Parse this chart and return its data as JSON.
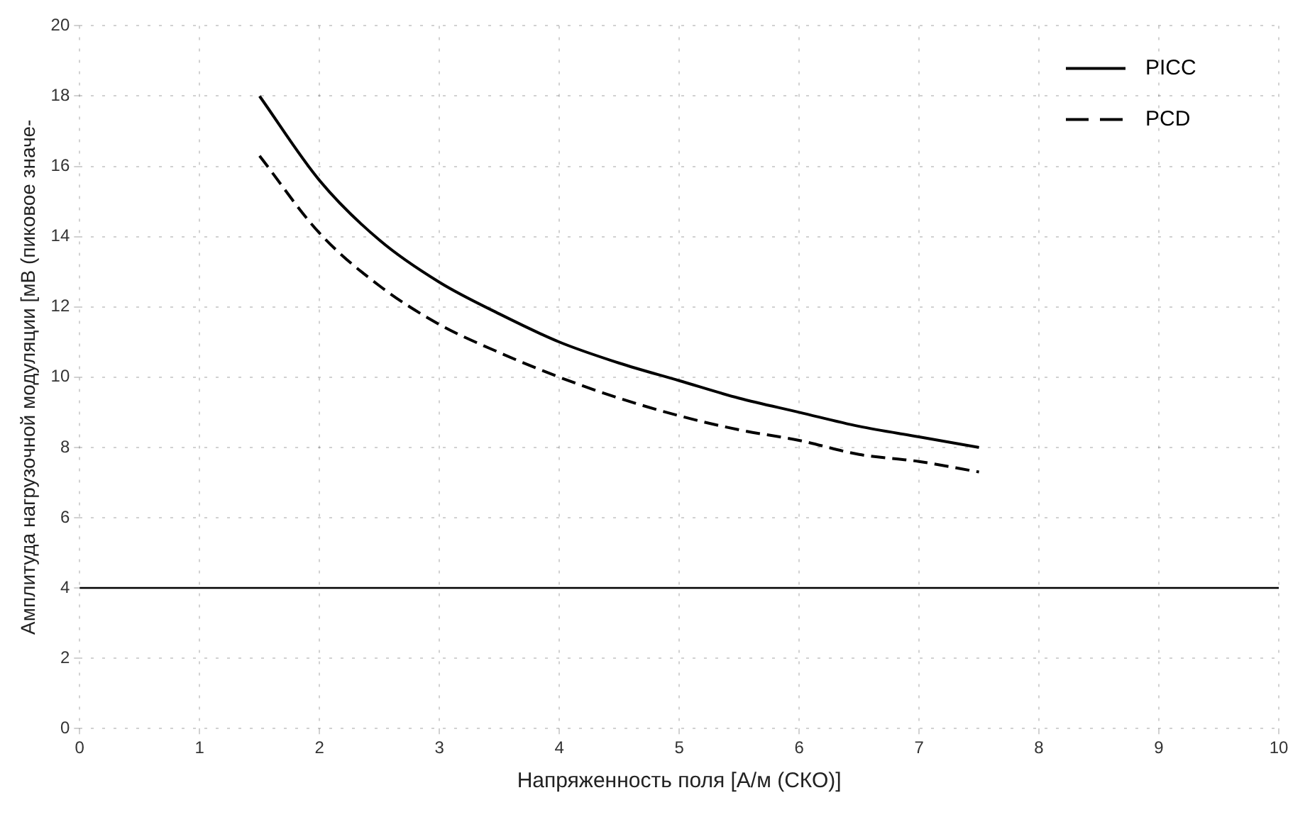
{
  "chart_data": {
    "type": "line",
    "xlabel": "Напряженность поля [А/м (СКО)]",
    "ylabel": "Амплитуда нагрузочной модуляции [мВ (пиковое значе-",
    "xlim": [
      0,
      10
    ],
    "xticks": [
      0,
      1,
      2,
      3,
      4,
      5,
      6,
      7,
      8,
      9,
      10
    ],
    "ylim": [
      0,
      20
    ],
    "yticks": [
      0,
      2,
      4,
      6,
      8,
      10,
      12,
      14,
      16,
      18,
      20
    ],
    "grid": true,
    "legend": "top right",
    "marker": "none",
    "ref_lines": [
      {
        "axis": "y",
        "value": 4,
        "color": "#000000",
        "line_style": "solid"
      }
    ],
    "series": [
      {
        "name": "PICC",
        "color": "#000000",
        "line_style": "solid",
        "x": [
          1.5,
          2,
          2.5,
          3,
          3.5,
          4,
          4.5,
          5,
          5.5,
          6,
          6.5,
          7,
          7.5
        ],
        "values": [
          18,
          15.6,
          13.9,
          12.7,
          11.8,
          11,
          10.4,
          9.9,
          9.4,
          9.0,
          8.6,
          8.3,
          8.0
        ]
      },
      {
        "name": "PCD",
        "color": "#000000",
        "line_style": "dashed",
        "x": [
          1.5,
          2,
          2.5,
          3,
          3.5,
          4,
          4.5,
          5,
          5.5,
          6,
          6.5,
          7,
          7.5
        ],
        "values": [
          16.3,
          14.1,
          12.6,
          11.5,
          10.7,
          10,
          9.4,
          8.9,
          8.5,
          8.2,
          7.8,
          7.6,
          7.3
        ]
      }
    ]
  }
}
